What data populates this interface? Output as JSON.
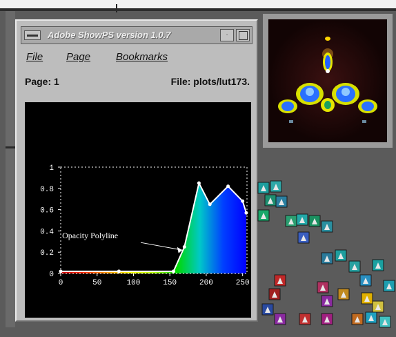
{
  "window": {
    "title": "Adobe ShowPS version 1.0.7",
    "min_glyph": "·"
  },
  "menu": [
    "File",
    "Page",
    "Bookmarks"
  ],
  "info": {
    "page_label": "Page: 1",
    "file_label": "File: plots/lut173."
  },
  "chart_data": {
    "type": "area",
    "xlim": [
      0,
      256
    ],
    "ylim": [
      0,
      1
    ],
    "x_ticks": [
      "0",
      "50",
      "100",
      "150",
      "200",
      "250"
    ],
    "y_ticks": [
      "0",
      "0.2",
      "0.4",
      "0.6",
      "0.8",
      "1"
    ],
    "annotation": "Opacity Polyline",
    "colorscale": [
      "#d00000",
      "#ff2a00",
      "#ff9a00",
      "#ffff00",
      "#b8ff00",
      "#00d800",
      "#00c8c8",
      "#0040ff",
      "#0000ff"
    ],
    "series": [
      {
        "points": [
          [
            0,
            0.02
          ],
          [
            80,
            0.02
          ],
          [
            155,
            0.02
          ],
          [
            170,
            0.25
          ],
          [
            190,
            0.85
          ],
          [
            205,
            0.65
          ],
          [
            230,
            0.82
          ],
          [
            250,
            0.68
          ],
          [
            255,
            0.57
          ]
        ]
      }
    ],
    "colors": {
      "background": "#000000",
      "axis": "#ffffff",
      "line": "#ffffff"
    }
  }
}
